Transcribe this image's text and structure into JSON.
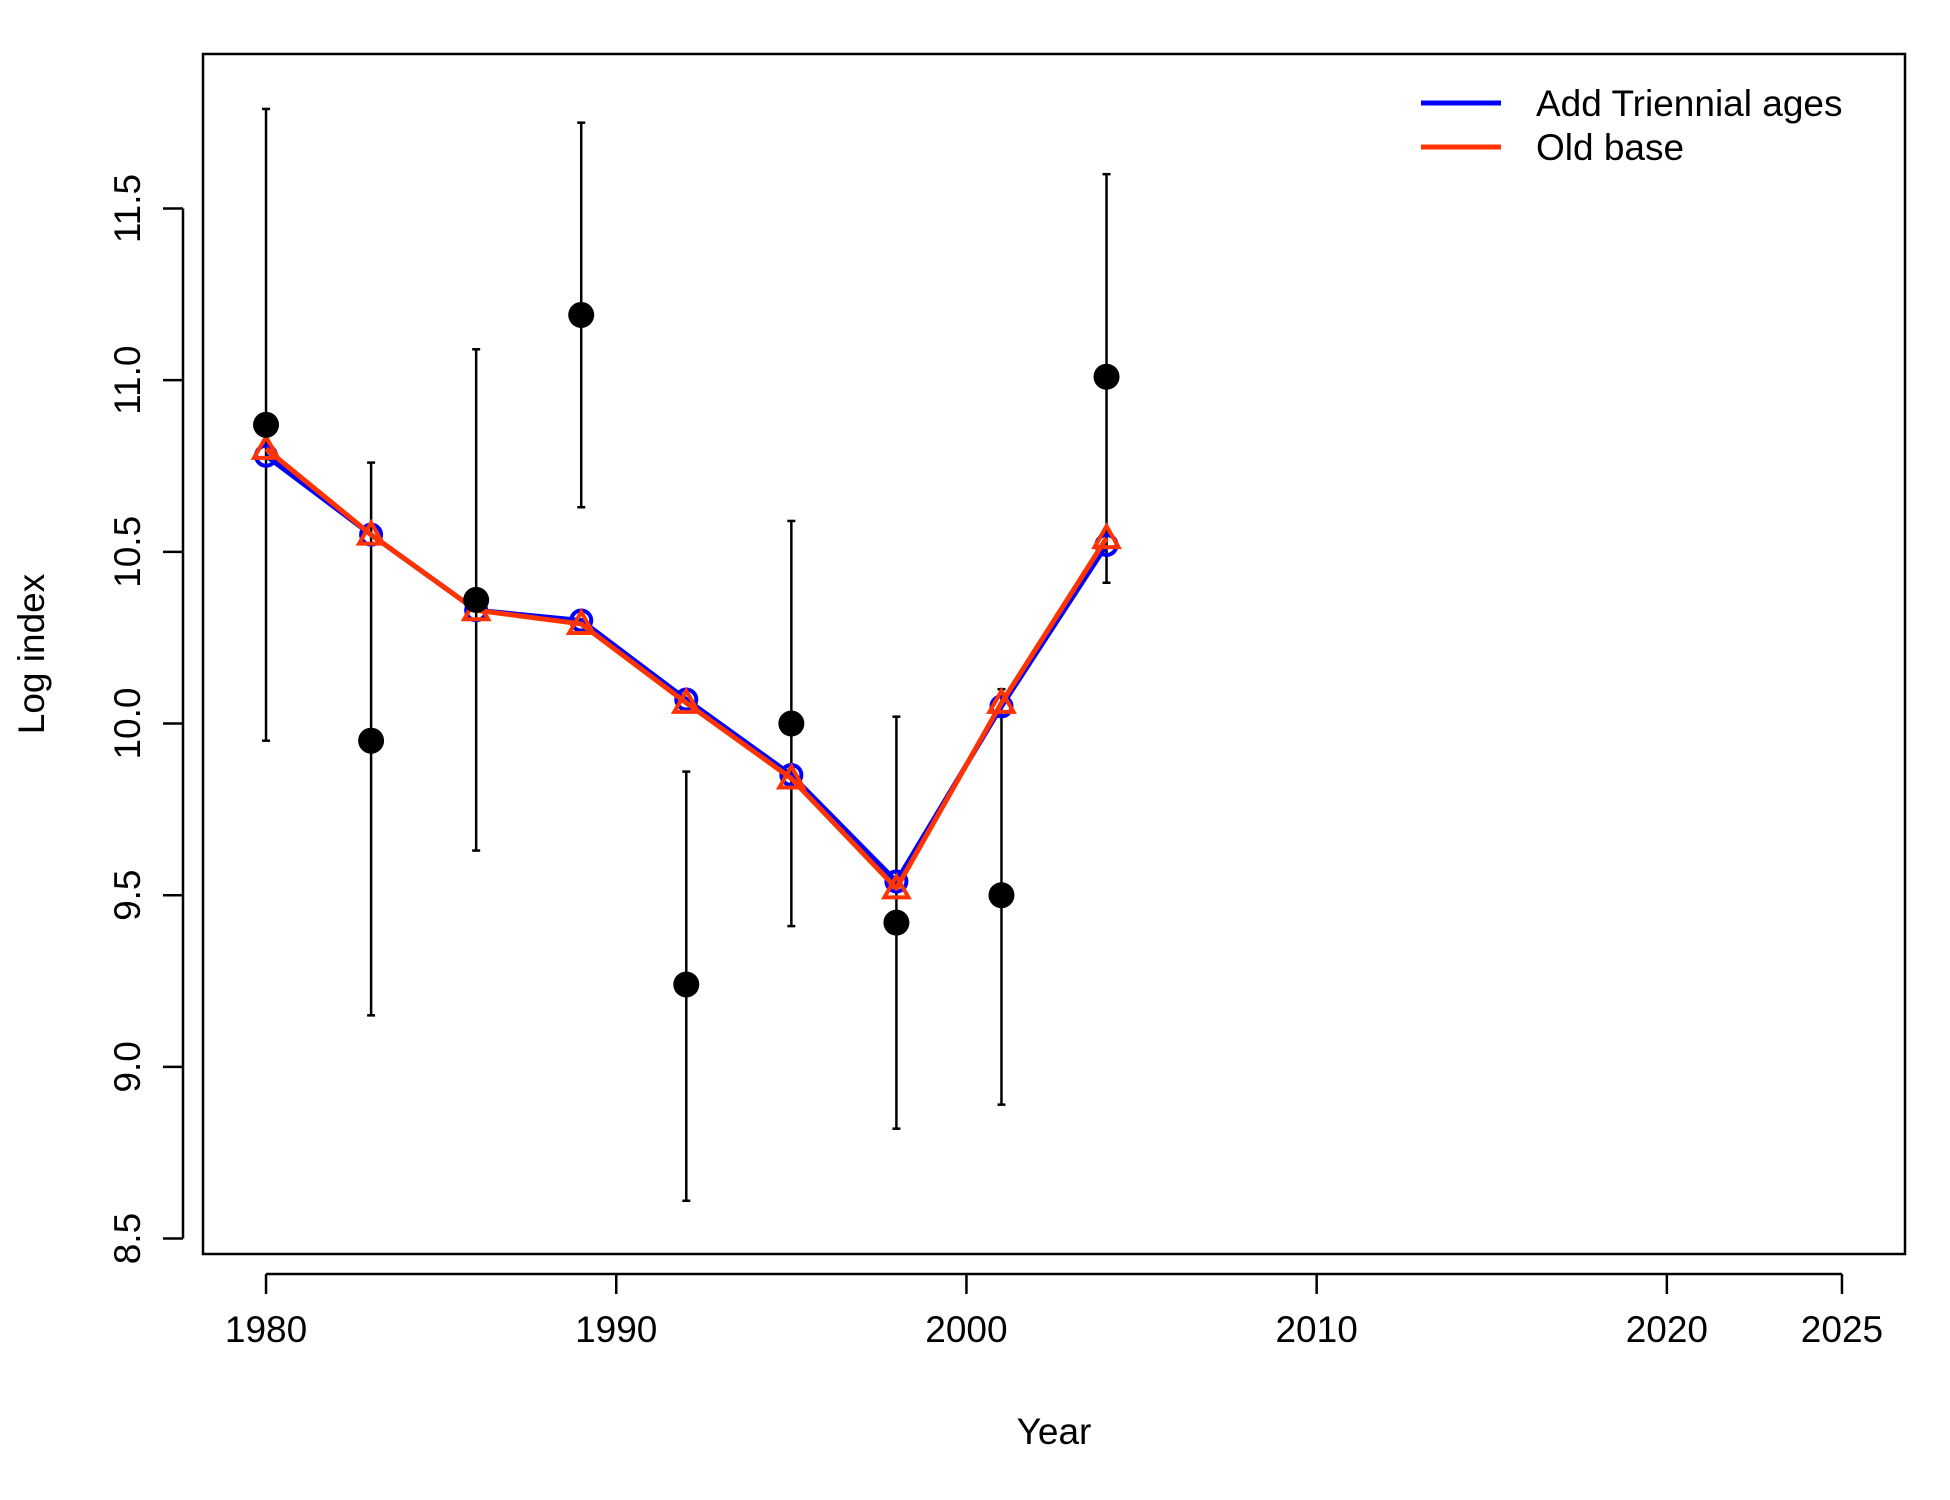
{
  "chart_data": {
    "type": "line",
    "title": "",
    "xlabel": "Year",
    "ylabel": "Log index",
    "xlim": [
      1978.2,
      2026.8
    ],
    "ylim": [
      8.455,
      11.95
    ],
    "x_ticks": [
      1980,
      1990,
      2000,
      2010,
      2020,
      2025
    ],
    "y_ticks": [
      8.5,
      9.0,
      9.5,
      10.0,
      10.5,
      11.0,
      11.5
    ],
    "grid": false,
    "legend_position": "top-right",
    "observed": {
      "x": [
        1980,
        1983,
        1986,
        1989,
        1992,
        1995,
        1998,
        2001,
        2004
      ],
      "y": [
        10.87,
        9.95,
        10.36,
        11.19,
        9.24,
        10.0,
        9.42,
        9.5,
        11.01
      ],
      "lower": [
        9.95,
        9.15,
        9.63,
        10.63,
        8.61,
        9.41,
        8.82,
        8.89,
        10.41
      ],
      "upper": [
        11.79,
        10.76,
        11.09,
        11.75,
        9.86,
        10.59,
        10.02,
        10.1,
        11.6
      ],
      "color": "#000000"
    },
    "series": [
      {
        "name": "Add Triennial ages",
        "color": "#0000ff",
        "marker": "circle",
        "x": [
          1980,
          1983,
          1986,
          1989,
          1992,
          1995,
          1998,
          2001,
          2004
        ],
        "y": [
          10.78,
          10.55,
          10.33,
          10.3,
          10.07,
          9.85,
          9.54,
          10.05,
          10.52
        ]
      },
      {
        "name": "Old base",
        "color": "#ff3300",
        "marker": "triangle",
        "x": [
          1980,
          1983,
          1986,
          1989,
          1992,
          1995,
          1998,
          2001,
          2004
        ],
        "y": [
          10.8,
          10.55,
          10.33,
          10.29,
          10.06,
          9.84,
          9.52,
          10.06,
          10.54
        ]
      }
    ]
  }
}
